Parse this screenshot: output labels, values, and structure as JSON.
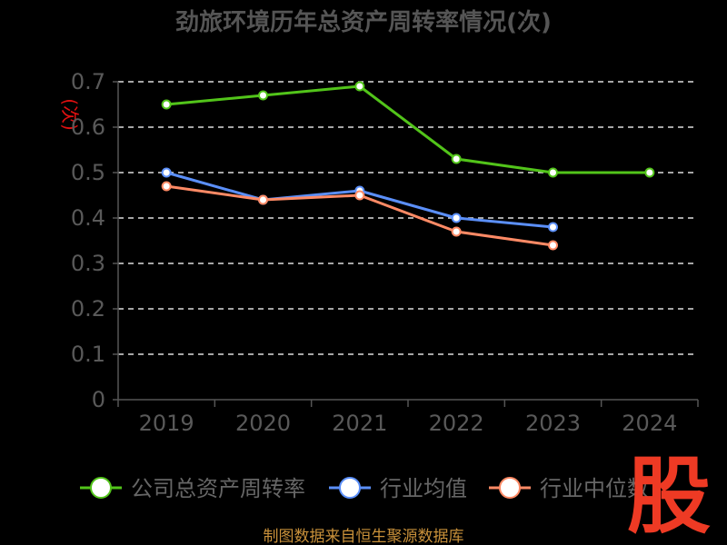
{
  "chart_data": {
    "type": "line",
    "title": "劲旅环境历年总资产周转率情况(次)",
    "ylabel": "(次)",
    "xlabel": "",
    "categories": [
      "2019",
      "2020",
      "2021",
      "2022",
      "2023",
      "2024"
    ],
    "ylim": [
      0,
      0.7
    ],
    "yticks": [
      "0",
      "0.1",
      "0.2",
      "0.3",
      "0.4",
      "0.5",
      "0.6",
      "0.7"
    ],
    "grid": true,
    "legend_position": "bottom",
    "series": [
      {
        "name": "公司总资产周转率",
        "color": "#52c41a",
        "values": [
          0.65,
          0.67,
          0.69,
          0.53,
          0.5,
          0.5
        ]
      },
      {
        "name": "行业均值",
        "color": "#5b8ff9",
        "values": [
          0.5,
          0.44,
          0.46,
          0.4,
          0.38,
          null
        ]
      },
      {
        "name": "行业中位数",
        "color": "#ff8a65",
        "values": [
          0.47,
          0.44,
          0.45,
          0.37,
          0.34,
          null
        ]
      }
    ]
  },
  "footer": {
    "source": "制图数据来自恒生聚源数据库"
  },
  "logo": {
    "glyph": "股"
  }
}
